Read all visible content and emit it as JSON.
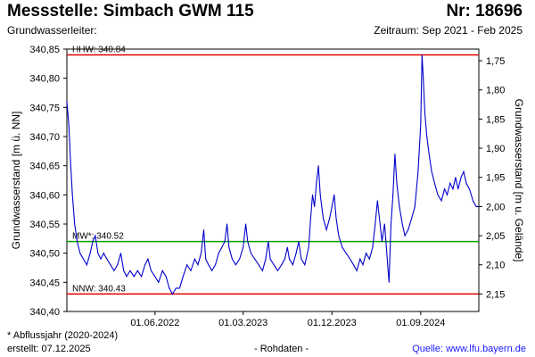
{
  "header": {
    "title": "Messstelle: Simbach GWM 115",
    "number": "Nr: 18696",
    "aquifer": "Grundwasserleiter:",
    "period": "Zeitraum: Sep 2021 - Feb 2025"
  },
  "footer": {
    "footnote": "* Abflussjahr (2020-2024)",
    "created": "erstellt:  07.12.2025",
    "data_kind": "- Rohdaten -",
    "source": "Quelle: www.lfu.bayern.de"
  },
  "chart_data": {
    "type": "line",
    "ylabel_left": "Grundwasserstand [m ü. NN]",
    "ylabel_right": "Grundwasserstand [m u. Gelände]",
    "ylim": [
      340.4,
      340.85
    ],
    "yticks_left": [
      "340,40",
      "340,45",
      "340,50",
      "340,55",
      "340,60",
      "340,65",
      "340,70",
      "340,75",
      "340,80",
      "340,85"
    ],
    "yticks_left_values": [
      340.4,
      340.45,
      340.5,
      340.55,
      340.6,
      340.65,
      340.7,
      340.75,
      340.8,
      340.85
    ],
    "yticks_right": [
      "1,75",
      "1,80",
      "1,85",
      "1,90",
      "1,95",
      "2,00",
      "2,05",
      "2,10",
      "2,15"
    ],
    "yticks_right_values": [
      1.75,
      1.8,
      1.85,
      1.9,
      1.95,
      2.0,
      2.05,
      2.1,
      2.15
    ],
    "gelaende_offset": 342.58,
    "xlim": [
      "2021-09-01",
      "2025-02-28"
    ],
    "xticks": [
      "01.06.2022",
      "01.03.2023",
      "01.12.2023",
      "01.09.2024"
    ],
    "xticks_dates": [
      "2022-06-01",
      "2023-03-01",
      "2023-12-01",
      "2024-09-01"
    ],
    "grid": false,
    "reference_lines": [
      {
        "label": "HHW: 340.84",
        "value": 340.84,
        "color": "#e00000"
      },
      {
        "label": "MW*: 340.52",
        "value": 340.52,
        "color": "#00a000"
      },
      {
        "label": "NNW: 340.43",
        "value": 340.43,
        "color": "#e00000"
      }
    ],
    "series": [
      {
        "color": "#0000cc",
        "points": [
          [
            "2021-09-01",
            340.76
          ],
          [
            "2021-09-07",
            340.72
          ],
          [
            "2021-09-12",
            340.66
          ],
          [
            "2021-09-18",
            340.6
          ],
          [
            "2021-09-25",
            340.55
          ],
          [
            "2021-10-03",
            340.52
          ],
          [
            "2021-10-12",
            340.5
          ],
          [
            "2021-10-22",
            340.49
          ],
          [
            "2021-11-02",
            340.48
          ],
          [
            "2021-11-12",
            340.5
          ],
          [
            "2021-11-20",
            340.52
          ],
          [
            "2021-11-28",
            340.53
          ],
          [
            "2021-12-06",
            340.5
          ],
          [
            "2021-12-15",
            340.49
          ],
          [
            "2021-12-24",
            340.5
          ],
          [
            "2022-01-03",
            340.49
          ],
          [
            "2022-01-14",
            340.48
          ],
          [
            "2022-01-25",
            340.47
          ],
          [
            "2022-02-05",
            340.48
          ],
          [
            "2022-02-15",
            340.5
          ],
          [
            "2022-02-24",
            340.47
          ],
          [
            "2022-03-05",
            340.46
          ],
          [
            "2022-03-16",
            340.47
          ],
          [
            "2022-03-28",
            340.46
          ],
          [
            "2022-04-08",
            340.47
          ],
          [
            "2022-04-20",
            340.46
          ],
          [
            "2022-05-01",
            340.48
          ],
          [
            "2022-05-10",
            340.49
          ],
          [
            "2022-05-20",
            340.47
          ],
          [
            "2022-06-01",
            340.46
          ],
          [
            "2022-06-12",
            340.45
          ],
          [
            "2022-06-24",
            340.47
          ],
          [
            "2022-07-05",
            340.46
          ],
          [
            "2022-07-15",
            340.44
          ],
          [
            "2022-07-25",
            340.43
          ],
          [
            "2022-08-05",
            340.44
          ],
          [
            "2022-08-16",
            340.44
          ],
          [
            "2022-08-27",
            340.46
          ],
          [
            "2022-09-08",
            340.48
          ],
          [
            "2022-09-20",
            340.47
          ],
          [
            "2022-10-02",
            340.49
          ],
          [
            "2022-10-12",
            340.48
          ],
          [
            "2022-10-22",
            340.5
          ],
          [
            "2022-10-30",
            340.54
          ],
          [
            "2022-11-05",
            340.49
          ],
          [
            "2022-11-14",
            340.48
          ],
          [
            "2022-11-24",
            340.47
          ],
          [
            "2022-12-05",
            340.48
          ],
          [
            "2022-12-15",
            340.5
          ],
          [
            "2022-12-25",
            340.51
          ],
          [
            "2023-01-03",
            340.52
          ],
          [
            "2023-01-10",
            340.55
          ],
          [
            "2023-01-16",
            340.51
          ],
          [
            "2023-01-26",
            340.49
          ],
          [
            "2023-02-06",
            340.48
          ],
          [
            "2023-02-18",
            340.49
          ],
          [
            "2023-03-01",
            340.51
          ],
          [
            "2023-03-09",
            340.55
          ],
          [
            "2023-03-15",
            340.52
          ],
          [
            "2023-03-25",
            340.5
          ],
          [
            "2023-04-06",
            340.49
          ],
          [
            "2023-04-18",
            340.48
          ],
          [
            "2023-04-30",
            340.47
          ],
          [
            "2023-05-10",
            340.49
          ],
          [
            "2023-05-18",
            340.52
          ],
          [
            "2023-05-24",
            340.49
          ],
          [
            "2023-06-04",
            340.48
          ],
          [
            "2023-06-16",
            340.47
          ],
          [
            "2023-06-28",
            340.48
          ],
          [
            "2023-07-08",
            340.49
          ],
          [
            "2023-07-16",
            340.51
          ],
          [
            "2023-07-22",
            340.49
          ],
          [
            "2023-08-02",
            340.48
          ],
          [
            "2023-08-12",
            340.5
          ],
          [
            "2023-08-20",
            340.52
          ],
          [
            "2023-08-28",
            340.49
          ],
          [
            "2023-09-08",
            340.48
          ],
          [
            "2023-09-20",
            340.51
          ],
          [
            "2023-09-26",
            340.56
          ],
          [
            "2023-10-02",
            340.6
          ],
          [
            "2023-10-08",
            340.58
          ],
          [
            "2023-10-14",
            340.62
          ],
          [
            "2023-10-20",
            340.65
          ],
          [
            "2023-10-26",
            340.6
          ],
          [
            "2023-11-04",
            340.56
          ],
          [
            "2023-11-14",
            340.54
          ],
          [
            "2023-11-24",
            340.56
          ],
          [
            "2023-12-01",
            340.58
          ],
          [
            "2023-12-08",
            340.6
          ],
          [
            "2023-12-14",
            340.56
          ],
          [
            "2023-12-22",
            340.53
          ],
          [
            "2024-01-02",
            340.51
          ],
          [
            "2024-01-14",
            340.5
          ],
          [
            "2024-01-26",
            340.49
          ],
          [
            "2024-02-06",
            340.48
          ],
          [
            "2024-02-16",
            340.47
          ],
          [
            "2024-02-26",
            340.49
          ],
          [
            "2024-03-06",
            340.48
          ],
          [
            "2024-03-16",
            340.5
          ],
          [
            "2024-03-26",
            340.49
          ],
          [
            "2024-04-05",
            340.51
          ],
          [
            "2024-04-13",
            340.55
          ],
          [
            "2024-04-20",
            340.59
          ],
          [
            "2024-04-26",
            340.56
          ],
          [
            "2024-05-04",
            340.52
          ],
          [
            "2024-05-12",
            340.55
          ],
          [
            "2024-05-19",
            340.5
          ],
          [
            "2024-05-26",
            340.45
          ],
          [
            "2024-06-01",
            340.55
          ],
          [
            "2024-06-07",
            340.6
          ],
          [
            "2024-06-13",
            340.67
          ],
          [
            "2024-06-19",
            340.62
          ],
          [
            "2024-06-27",
            340.58
          ],
          [
            "2024-07-06",
            340.55
          ],
          [
            "2024-07-14",
            340.53
          ],
          [
            "2024-07-24",
            340.54
          ],
          [
            "2024-08-04",
            340.56
          ],
          [
            "2024-08-14",
            340.58
          ],
          [
            "2024-08-24",
            340.64
          ],
          [
            "2024-09-01",
            340.72
          ],
          [
            "2024-09-05",
            340.84
          ],
          [
            "2024-09-09",
            340.8
          ],
          [
            "2024-09-14",
            340.74
          ],
          [
            "2024-09-20",
            340.7
          ],
          [
            "2024-09-27",
            340.67
          ],
          [
            "2024-10-05",
            340.64
          ],
          [
            "2024-10-14",
            340.62
          ],
          [
            "2024-10-24",
            340.6
          ],
          [
            "2024-11-04",
            340.59
          ],
          [
            "2024-11-14",
            340.61
          ],
          [
            "2024-11-22",
            340.6
          ],
          [
            "2024-12-01",
            340.62
          ],
          [
            "2024-12-10",
            340.61
          ],
          [
            "2024-12-18",
            340.63
          ],
          [
            "2024-12-26",
            340.61
          ],
          [
            "2025-01-04",
            340.63
          ],
          [
            "2025-01-12",
            340.64
          ],
          [
            "2025-01-20",
            340.62
          ],
          [
            "2025-01-30",
            340.61
          ],
          [
            "2025-02-10",
            340.59
          ],
          [
            "2025-02-20",
            340.58
          ],
          [
            "2025-02-28",
            340.58
          ]
        ]
      }
    ]
  }
}
